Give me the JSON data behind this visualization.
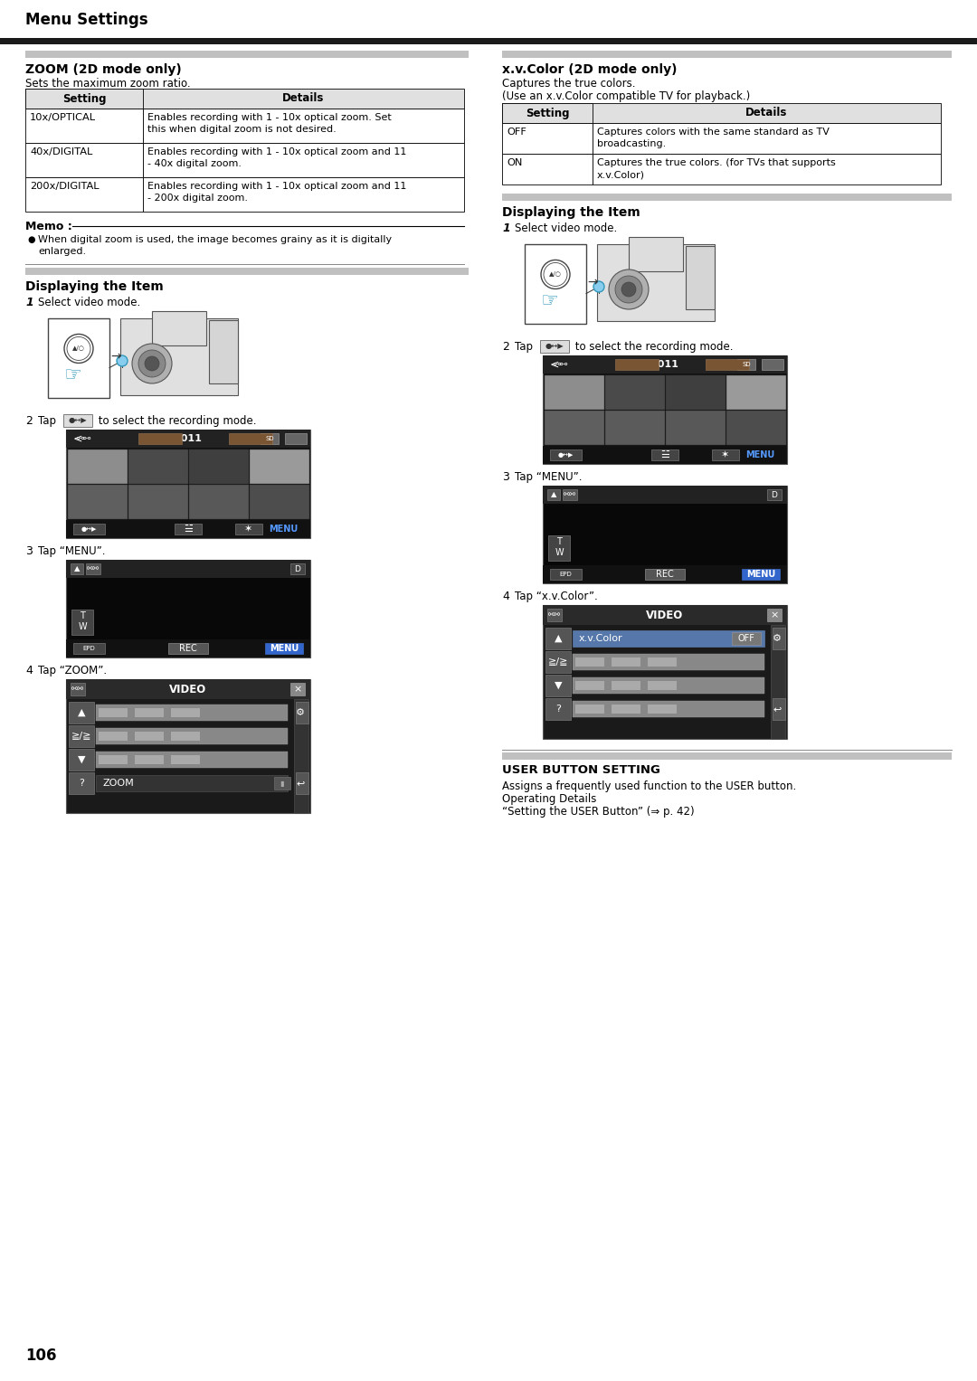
{
  "page_number": "106",
  "header_title": "Menu Settings",
  "bg_color": "#ffffff",
  "header_bar_color": "#1a1a1a",
  "section_bar_color": "#c0c0c0",
  "left_col": {
    "section_title": "ZOOM (2D mode only)",
    "section_desc": "Sets the maximum zoom ratio.",
    "table_headers": [
      "Setting",
      "Details"
    ],
    "table_rows": [
      [
        "10x/OPTICAL",
        "Enables recording with 1 - 10x optical zoom. Set\nthis when digital zoom is not desired."
      ],
      [
        "40x/DIGITAL",
        "Enables recording with 1 - 10x optical zoom and 11\n- 40x digital zoom."
      ],
      [
        "200x/DIGITAL",
        "Enables recording with 1 - 10x optical zoom and 11\n- 200x digital zoom."
      ]
    ],
    "memo_title": "Memo :",
    "memo_bullet": "When digital zoom is used, the image becomes grainy as it is digitally\nenlarged.",
    "displaying_title": "Displaying the Item",
    "step1": "Select video mode.",
    "step3": "Tap “MENU”.",
    "step4": "Tap “ZOOM”."
  },
  "right_col": {
    "section_title": "x.v.Color (2D mode only)",
    "section_desc1": "Captures the true colors.",
    "section_desc2": "(Use an x.v.Color compatible TV for playback.)",
    "table_headers": [
      "Setting",
      "Details"
    ],
    "table_rows": [
      [
        "OFF",
        "Captures colors with the same standard as TV\nbroadcasting."
      ],
      [
        "ON",
        "Captures the true colors. (for TVs that supports\nx.v.Color)"
      ]
    ],
    "displaying_title": "Displaying the Item",
    "step1": "Select video mode.",
    "step3": "Tap “MENU”.",
    "step4": "Tap “x.v.Color”.",
    "user_button_title": "USER BUTTON SETTING",
    "user_button_desc1": "Assigns a frequently used function to the USER button.",
    "user_button_desc2": "Operating Details",
    "user_button_desc3": "“Setting the USER Button” (⇒ p. 42)"
  }
}
